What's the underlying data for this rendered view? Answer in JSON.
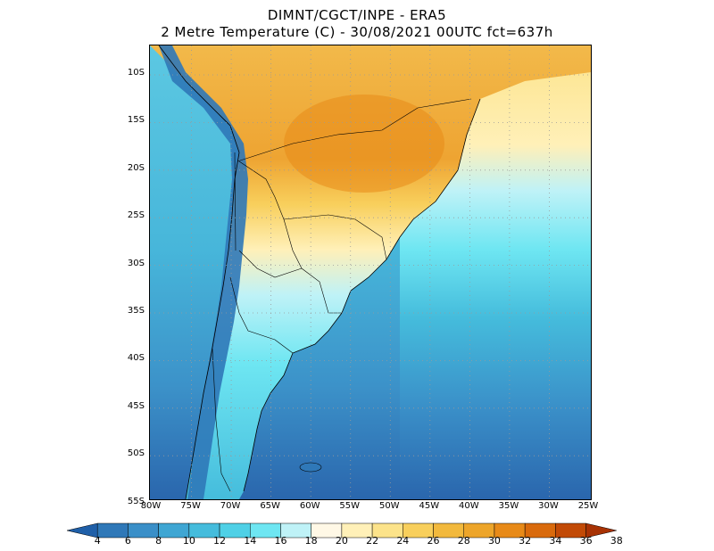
{
  "header": {
    "line1": "DIMNT/CGCT/INPE -  ERA5",
    "line2": "2 Metre Temperature (C) -  30/08/2021 00UTC fct=637h"
  },
  "axes": {
    "lat_labels": [
      "10S",
      "15S",
      "20S",
      "25S",
      "30S",
      "35S",
      "40S",
      "45S",
      "50S",
      "55S"
    ],
    "lon_labels": [
      "80W",
      "75W",
      "70W",
      "65W",
      "60W",
      "55W",
      "50W",
      "45W",
      "40W",
      "35W",
      "30W",
      "25W"
    ]
  },
  "colorbar": {
    "levels": [
      "4",
      "6",
      "8",
      "10",
      "12",
      "14",
      "16",
      "18",
      "20",
      "22",
      "24",
      "26",
      "28",
      "30",
      "32",
      "34",
      "36",
      "38"
    ],
    "colors": [
      "#1f5fa8",
      "#2f78b8",
      "#3a8fc8",
      "#3fa6d3",
      "#45bcdc",
      "#4fd0e6",
      "#6ee6f2",
      "#bff2f7",
      "#fff8e6",
      "#fff0b8",
      "#fce38a",
      "#f8cf5c",
      "#f2b93d",
      "#eda52a",
      "#e88a18",
      "#d96a0c",
      "#c24a06",
      "#a83204"
    ]
  },
  "map": {
    "ocean_deep": "#2a66ad",
    "ocean_mid": "#3c92c9",
    "land_warm": "#f2b94a",
    "land_hot": "#e9a22e",
    "coast_color": "#000000"
  }
}
